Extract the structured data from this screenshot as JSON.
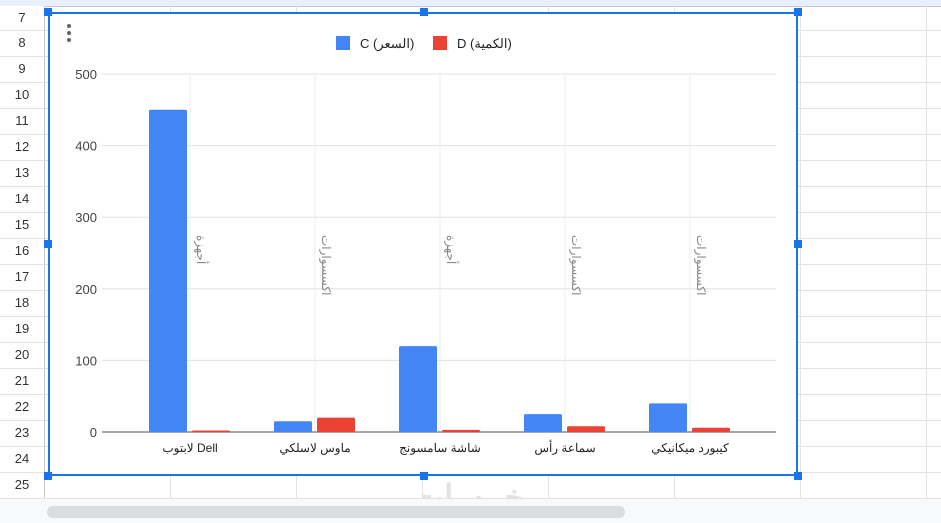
{
  "sheet": {
    "row_numbers": [
      "7",
      "8",
      "9",
      "10",
      "11",
      "12",
      "13",
      "14",
      "15",
      "16",
      "17",
      "18",
      "19",
      "20",
      "21",
      "22",
      "23",
      "24",
      "25"
    ],
    "watermark": "خمسات"
  },
  "chart_data": {
    "type": "bar",
    "title": "",
    "xlabel": "",
    "ylabel": "",
    "categories": [
      "لابتوب Dell",
      "ماوس لاسلكي",
      "شاشة سامسونج",
      "سماعة رأس",
      "كيبورد ميكانيكي"
    ],
    "category_groups": [
      "أجهزة",
      "اكسسوارات",
      "أجهزة",
      "اكسسوارات",
      "اكسسوارات"
    ],
    "series": [
      {
        "name": "C (السعر)",
        "color": "#4285f4",
        "values": [
          450,
          15,
          120,
          25,
          40
        ]
      },
      {
        "name": "D (الكمية)",
        "color": "#ea4335",
        "values": [
          2,
          20,
          3,
          8,
          6
        ]
      }
    ],
    "ylim": [
      0,
      500
    ],
    "yticks": [
      "0",
      "100",
      "200",
      "300",
      "400",
      "500"
    ],
    "grid": true,
    "legend": "top"
  }
}
